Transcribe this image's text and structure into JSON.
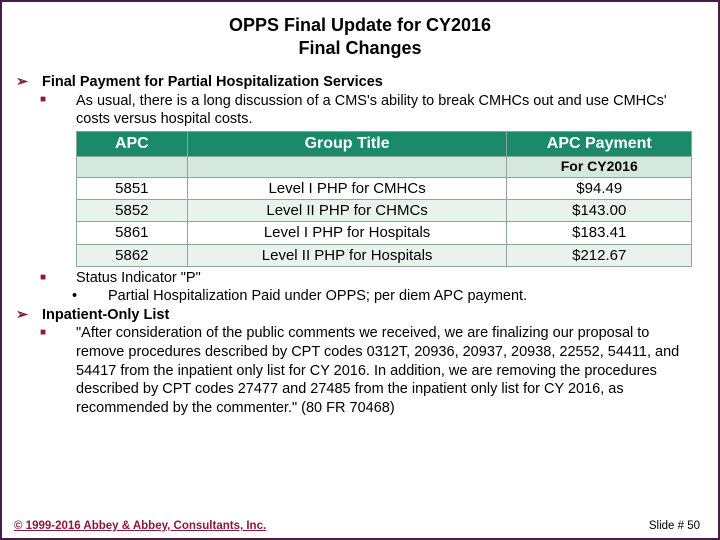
{
  "title_line1": "OPPS Final Update for CY2016",
  "title_line2": "Final Changes",
  "sections": {
    "s1_header": "Final Payment for Partial Hospitalization Services",
    "s1_b1": "As usual, there is a long discussion of a CMS's ability to break CMHCs out and use CMHCs' costs versus hospital costs.",
    "s1_b2": "Status Indicator \"P\"",
    "s1_b2_d1": "Partial Hospitalization  Paid under OPPS; per diem APC payment.",
    "s2_header": "Inpatient-Only List",
    "s2_b1": "\"After consideration of the public comments we received, we are finalizing our proposal to remove procedures described by CPT codes 0312T, 20936, 20937, 20938, 22552, 54411, and 54417 from the inpatient only list for CY 2016. In addition, we are removing the procedures described by CPT codes 27477 and 27485 from the inpatient only list for CY 2016, as recommended by the commenter.\"  (80 FR 70468)"
  },
  "table": {
    "headers": {
      "c1": "APC",
      "c2": "Group Title",
      "c3": "APC Payment"
    },
    "subheader": {
      "c1": "",
      "c2": "",
      "c3": "For CY2016"
    },
    "rows": [
      {
        "c1": "5851",
        "c2": "Level I PHP for CMHCs",
        "c3": "$94.49"
      },
      {
        "c1": "5852",
        "c2": "Level II PHP for CHMCs",
        "c3": "$143.00"
      },
      {
        "c1": "5861",
        "c2": "Level I PHP for Hospitals",
        "c3": "$183.41"
      },
      {
        "c1": "5862",
        "c2": "Level II PHP for Hospitals",
        "c3": "$212.67"
      }
    ]
  },
  "footer": "© 1999-2016 Abbey & Abbey, Consultants, Inc.",
  "slideno": "Slide # 50"
}
